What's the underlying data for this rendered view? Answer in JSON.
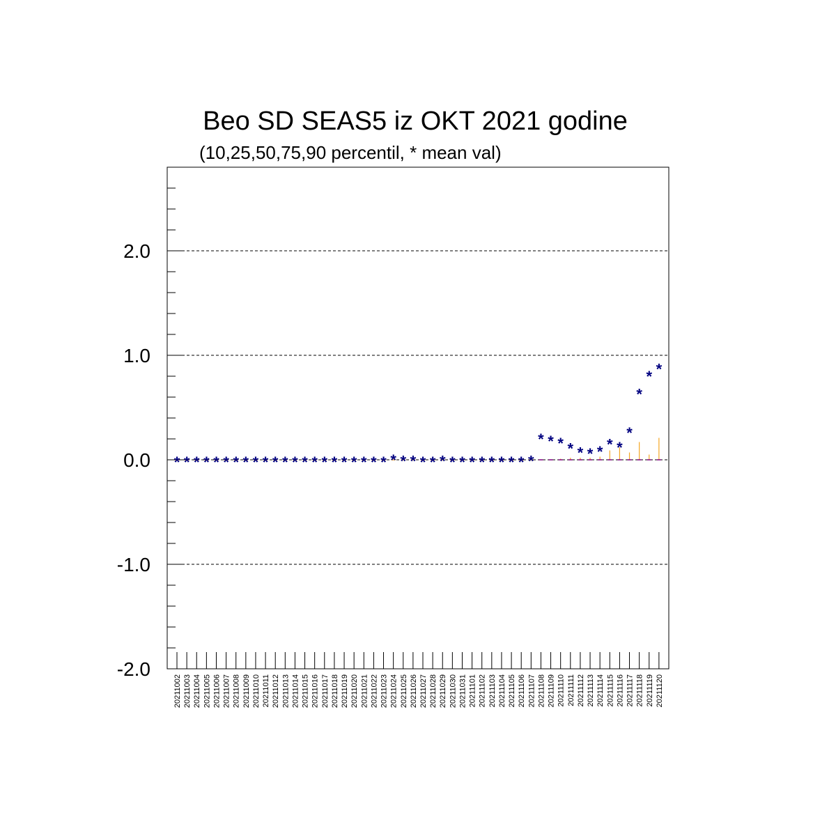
{
  "chart_data": {
    "type": "scatter",
    "title": "Beo SD SEAS5 iz OKT 2021 godine",
    "subtitle": "(10,25,50,75,90 percentil, * mean val)",
    "xlabel": "",
    "ylabel": "",
    "ylim": [
      -2.0,
      2.8
    ],
    "yticks": [
      2.0,
      1.0,
      0.0,
      -1.0,
      -2.0
    ],
    "ytick_labels": [
      "2.0",
      "1.0",
      "0.0",
      "-1.0",
      "-2.0"
    ],
    "grid": "horizontal dashed at major ticks",
    "categories": [
      "20211002",
      "20211003",
      "20211004",
      "20211005",
      "20211006",
      "20211007",
      "20211008",
      "20211009",
      "20211010",
      "20211011",
      "20211012",
      "20211013",
      "20211014",
      "20211015",
      "20211016",
      "20211017",
      "20211018",
      "20211019",
      "20211020",
      "20211021",
      "20211022",
      "20211023",
      "20211024",
      "20211025",
      "20211026",
      "20211027",
      "20211028",
      "20211029",
      "20211030",
      "20211031",
      "20211101",
      "20211102",
      "20211103",
      "20211104",
      "20211105",
      "20211106",
      "20211107",
      "20211108",
      "20211109",
      "20211110",
      "20211111",
      "20211112",
      "20211113",
      "20211114",
      "20211115",
      "20211116",
      "20211117",
      "20211118",
      "20211119",
      "20211120"
    ],
    "mean_values": [
      0.0,
      0.0,
      0.0,
      0.0,
      0.0,
      0.0,
      0.0,
      0.0,
      0.0,
      0.0,
      0.0,
      0.0,
      0.0,
      0.0,
      0.0,
      0.0,
      0.0,
      0.0,
      0.0,
      0.0,
      0.0,
      0.0,
      0.02,
      0.01,
      0.01,
      0.0,
      0.0,
      0.01,
      0.0,
      0.0,
      0.0,
      0.0,
      0.0,
      0.0,
      0.0,
      0.0,
      0.01,
      0.22,
      0.2,
      0.18,
      0.13,
      0.09,
      0.08,
      0.1,
      0.17,
      0.14,
      0.28,
      0.65,
      0.82,
      0.89
    ],
    "p90_values": [
      0,
      0,
      0,
      0,
      0,
      0,
      0,
      0,
      0,
      0,
      0,
      0,
      0,
      0,
      0,
      0,
      0,
      0,
      0,
      0,
      0,
      0,
      0,
      0,
      0,
      0,
      0,
      0,
      0,
      0,
      0,
      0,
      0,
      0,
      0,
      0,
      0,
      0.0,
      0.0,
      0.01,
      0.02,
      0.02,
      0.02,
      0.03,
      0.09,
      0.12,
      0.07,
      0.17,
      0.05,
      0.21
    ],
    "colors": {
      "mean": "#000080",
      "percentile": "#f5a623",
      "median": "#800080",
      "grid": "#000000"
    }
  }
}
